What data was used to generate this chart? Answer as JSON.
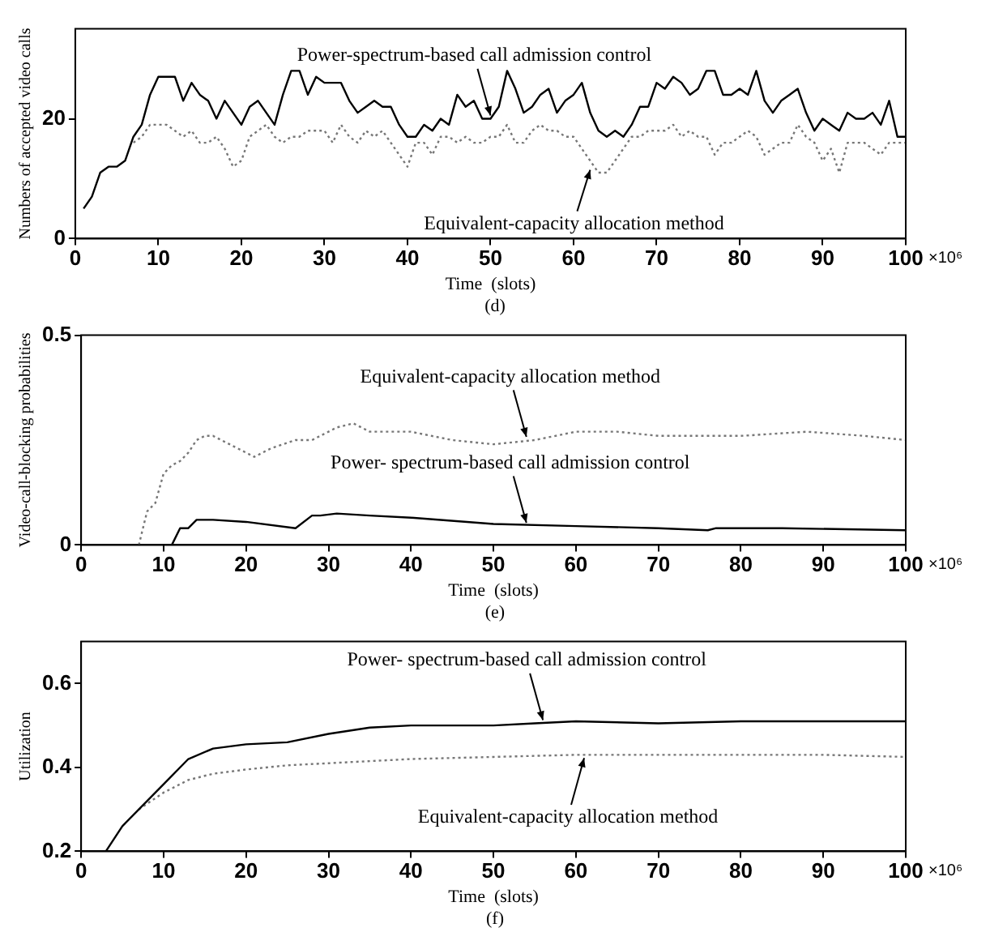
{
  "chart_data": [
    {
      "type": "line",
      "xlabel": "Time  (slots)",
      "ylabel": "Numbers of accepted video calls",
      "xlim": [
        0,
        100
      ],
      "ylim": [
        0,
        35
      ],
      "xticks": [
        0,
        10,
        20,
        30,
        40,
        50,
        60,
        70,
        80,
        90,
        100
      ],
      "yticks": [
        0,
        20
      ],
      "grid": false,
      "legend": false,
      "marker": "none",
      "series": [
        {
          "color": "#000000",
          "line_style": "solid",
          "x": [
            1,
            2,
            3,
            4,
            5,
            6,
            7,
            8,
            9,
            10,
            11,
            12,
            13,
            14,
            15,
            16,
            17,
            18,
            19,
            20,
            21,
            22,
            23,
            24,
            25,
            26,
            27,
            28,
            29,
            30,
            31,
            32,
            33,
            34,
            35,
            36,
            37,
            38,
            39,
            40,
            41,
            42,
            43,
            44,
            45,
            46,
            47,
            48,
            49,
            50,
            51,
            52,
            53,
            54,
            55,
            56,
            57,
            58,
            59,
            60,
            61,
            62,
            63,
            64,
            65,
            66,
            67,
            68,
            69,
            70,
            71,
            72,
            73,
            74,
            75,
            76,
            77,
            78,
            79,
            80,
            81,
            82,
            83,
            84,
            85,
            86,
            87,
            88,
            89,
            90,
            91,
            92,
            93,
            94,
            95,
            96,
            97,
            98,
            99,
            100
          ],
          "values": [
            5,
            7,
            11,
            12,
            12,
            13,
            17,
            19,
            24,
            27,
            27,
            27,
            23,
            26,
            24,
            23,
            20,
            23,
            21,
            19,
            22,
            23,
            21,
            19,
            24,
            28,
            28,
            24,
            27,
            26,
            26,
            26,
            23,
            21,
            22,
            23,
            22,
            22,
            19,
            17,
            17,
            19,
            18,
            20,
            19,
            24,
            22,
            23,
            20,
            20,
            22,
            28,
            25,
            21,
            22,
            24,
            25,
            21,
            23,
            24,
            26,
            21,
            18,
            17,
            18,
            17,
            19,
            22,
            22,
            26,
            25,
            27,
            26,
            24,
            25,
            28,
            28,
            24,
            24,
            25,
            24,
            28,
            23,
            21,
            23,
            24,
            25,
            21,
            18,
            20,
            19,
            18,
            21,
            20,
            20,
            21,
            19,
            23,
            17,
            17
          ]
        },
        {
          "color": "#777777",
          "line_style": "dotted",
          "x": [
            7,
            8,
            9,
            10,
            11,
            12,
            13,
            14,
            15,
            16,
            17,
            18,
            19,
            20,
            21,
            22,
            23,
            24,
            25,
            26,
            27,
            28,
            29,
            30,
            31,
            32,
            33,
            34,
            35,
            36,
            37,
            38,
            39,
            40,
            41,
            42,
            43,
            44,
            45,
            46,
            47,
            48,
            49,
            50,
            51,
            52,
            53,
            54,
            55,
            56,
            57,
            58,
            59,
            60,
            61,
            62,
            63,
            64,
            65,
            66,
            67,
            68,
            69,
            70,
            71,
            72,
            73,
            74,
            75,
            76,
            77,
            78,
            79,
            80,
            81,
            82,
            83,
            84,
            85,
            86,
            87,
            88,
            89,
            90,
            91,
            92,
            93,
            95,
            96,
            97,
            98,
            100
          ],
          "values": [
            16,
            17,
            19,
            19,
            19,
            18,
            17,
            18,
            16,
            16,
            17,
            15,
            12,
            13,
            17,
            18,
            19,
            17,
            16,
            17,
            17,
            18,
            18,
            18,
            16,
            19,
            17,
            16,
            18,
            17,
            18,
            16,
            14,
            12,
            16,
            16,
            14,
            17,
            17,
            16,
            17,
            16,
            16,
            17,
            17,
            19,
            16,
            16,
            18,
            19,
            18,
            18,
            17,
            17,
            15,
            13,
            11,
            11,
            13,
            15,
            17,
            17,
            18,
            18,
            18,
            19,
            17,
            18,
            17,
            17,
            14,
            16,
            16,
            17,
            18,
            17,
            14,
            15,
            16,
            16,
            19,
            17,
            16,
            13,
            15,
            11,
            16,
            16,
            15,
            14,
            16,
            16
          ]
        }
      ],
      "annotations": [
        {
          "text": "Power-spectrum-based call admission control",
          "x": 50,
          "y": 20
        },
        {
          "text": "Equivalent-capacity allocation method",
          "x": 62,
          "y": 12
        },
        "×10⁶",
        "(d)"
      ]
    },
    {
      "type": "line",
      "xlabel": "Time  (slots)",
      "ylabel": "Video-call-blocking probabilities",
      "xlim": [
        0,
        100
      ],
      "ylim": [
        0,
        0.5
      ],
      "xticks": [
        0,
        10,
        20,
        30,
        40,
        50,
        60,
        70,
        80,
        90,
        100
      ],
      "yticks": [
        0,
        0.5
      ],
      "grid": false,
      "legend": false,
      "marker": "none",
      "series": [
        {
          "color": "#777777",
          "line_style": "dotted",
          "x": [
            7,
            8,
            9,
            10,
            11,
            12,
            13,
            14,
            15,
            16,
            18,
            20,
            21,
            23,
            26,
            28,
            30,
            31,
            33,
            35,
            40,
            45,
            50,
            55,
            60,
            65,
            70,
            75,
            80,
            88,
            95,
            100
          ],
          "values": [
            0,
            0.08,
            0.1,
            0.17,
            0.19,
            0.2,
            0.22,
            0.25,
            0.26,
            0.26,
            0.24,
            0.22,
            0.21,
            0.23,
            0.25,
            0.25,
            0.27,
            0.28,
            0.29,
            0.27,
            0.27,
            0.25,
            0.24,
            0.25,
            0.27,
            0.27,
            0.26,
            0.26,
            0.26,
            0.27,
            0.26,
            0.25
          ]
        },
        {
          "color": "#000000",
          "line_style": "solid",
          "x": [
            11,
            12,
            13,
            14,
            16,
            20,
            26,
            28,
            29,
            31,
            35,
            40,
            50,
            60,
            70,
            76,
            77,
            85,
            100
          ],
          "values": [
            0,
            0.04,
            0.04,
            0.06,
            0.06,
            0.055,
            0.04,
            0.07,
            0.07,
            0.075,
            0.07,
            0.065,
            0.05,
            0.045,
            0.04,
            0.035,
            0.04,
            0.04,
            0.035
          ]
        }
      ],
      "annotations": [
        {
          "text": "Equivalent-capacity allocation method",
          "x": 54,
          "y": 0.25
        },
        {
          "text": "Power- spectrum-based call admission control",
          "x": 54,
          "y": 0.045
        },
        "×10⁶",
        "(e)"
      ]
    },
    {
      "type": "line",
      "xlabel": "Time  (slots)",
      "ylabel": "Utilization",
      "xlim": [
        0,
        100
      ],
      "ylim": [
        0.2,
        0.7
      ],
      "xticks": [
        0,
        10,
        20,
        30,
        40,
        50,
        60,
        70,
        80,
        90,
        100
      ],
      "yticks": [
        0.2,
        0.4,
        0.6
      ],
      "grid": false,
      "legend": false,
      "marker": "none",
      "series": [
        {
          "color": "#000000",
          "line_style": "solid",
          "x": [
            3,
            5,
            7,
            10,
            13,
            16,
            20,
            25,
            30,
            35,
            40,
            50,
            55,
            60,
            70,
            80,
            90,
            100
          ],
          "values": [
            0.2,
            0.26,
            0.3,
            0.36,
            0.42,
            0.445,
            0.455,
            0.46,
            0.48,
            0.495,
            0.5,
            0.5,
            0.505,
            0.51,
            0.505,
            0.51,
            0.51,
            0.51
          ]
        },
        {
          "color": "#777777",
          "line_style": "dotted",
          "x": [
            7,
            10,
            13,
            16,
            20,
            25,
            30,
            40,
            50,
            60,
            70,
            80,
            90,
            100
          ],
          "values": [
            0.3,
            0.34,
            0.37,
            0.385,
            0.395,
            0.405,
            0.41,
            0.42,
            0.425,
            0.43,
            0.43,
            0.43,
            0.43,
            0.425
          ]
        }
      ],
      "annotations": [
        {
          "text": "Power- spectrum-based call admission control",
          "x": 56,
          "y": 0.505
        },
        {
          "text": "Equivalent-capacity allocation method",
          "x": 61,
          "y": 0.43
        },
        "×10⁶",
        "(f)"
      ]
    }
  ]
}
